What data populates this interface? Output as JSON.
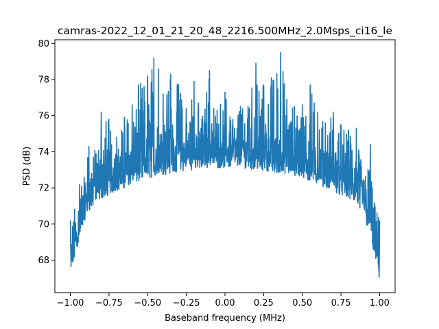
{
  "chart_data": {
    "type": "line",
    "title": "camras-2022_12_01_21_20_48_2216.500MHz_2.0Msps_ci16_le",
    "xlabel": "Baseband frequency (MHz)",
    "ylabel": "PSD (dB)",
    "xlim": [
      -1.1,
      1.1
    ],
    "ylim": [
      66.2,
      80.2
    ],
    "xticks": [
      -1.0,
      -0.75,
      -0.5,
      -0.25,
      0.0,
      0.25,
      0.5,
      0.75,
      1.0
    ],
    "xtick_labels": [
      "−1.00",
      "−0.75",
      "−0.50",
      "−0.25",
      "0.00",
      "0.25",
      "0.50",
      "0.75",
      "1.00"
    ],
    "yticks": [
      68,
      70,
      72,
      74,
      76,
      78,
      80
    ],
    "ytick_labels": [
      "68",
      "70",
      "72",
      "74",
      "76",
      "78",
      "80"
    ],
    "grid": false,
    "color": "#1f77b4",
    "series": [
      {
        "x_range": [
          -1.0,
          1.0
        ],
        "floor_shape": {
          "x": [
            -1.0,
            -0.98,
            -0.95,
            -0.92,
            -0.9,
            -0.85,
            -0.8,
            -0.7,
            -0.6,
            -0.5,
            -0.4,
            -0.3,
            -0.2,
            -0.1,
            0.0,
            0.1,
            0.2,
            0.3,
            0.4,
            0.5,
            0.6,
            0.7,
            0.8,
            0.85,
            0.9,
            0.92,
            0.95,
            0.98,
            1.0
          ],
          "y": [
            67.0,
            68.0,
            69.0,
            70.0,
            70.6,
            71.2,
            71.6,
            72.0,
            72.4,
            72.7,
            72.9,
            73.1,
            73.2,
            73.3,
            73.3,
            73.3,
            73.2,
            73.1,
            72.9,
            72.7,
            72.4,
            72.0,
            71.6,
            71.2,
            70.6,
            70.0,
            69.0,
            68.0,
            67.0
          ]
        },
        "peaks": [
          {
            "x": -1.0,
            "y": 70.2
          },
          {
            "x": -0.94,
            "y": 72.2
          },
          {
            "x": -0.91,
            "y": 72.6
          },
          {
            "x": -0.88,
            "y": 74.3
          },
          {
            "x": -0.85,
            "y": 73.7
          },
          {
            "x": -0.8,
            "y": 76.2
          },
          {
            "x": -0.75,
            "y": 75.8
          },
          {
            "x": -0.7,
            "y": 74.8
          },
          {
            "x": -0.65,
            "y": 75.9
          },
          {
            "x": -0.6,
            "y": 76.6
          },
          {
            "x": -0.56,
            "y": 77.7
          },
          {
            "x": -0.5,
            "y": 78.2
          },
          {
            "x": -0.46,
            "y": 79.2
          },
          {
            "x": -0.43,
            "y": 78.6
          },
          {
            "x": -0.4,
            "y": 77.2
          },
          {
            "x": -0.35,
            "y": 78.3
          },
          {
            "x": -0.3,
            "y": 77.7
          },
          {
            "x": -0.25,
            "y": 76.4
          },
          {
            "x": -0.2,
            "y": 77.9
          },
          {
            "x": -0.15,
            "y": 75.8
          },
          {
            "x": -0.1,
            "y": 78.5
          },
          {
            "x": -0.05,
            "y": 76.3
          },
          {
            "x": 0.0,
            "y": 77.3
          },
          {
            "x": 0.05,
            "y": 75.8
          },
          {
            "x": 0.1,
            "y": 76.5
          },
          {
            "x": 0.15,
            "y": 76.5
          },
          {
            "x": 0.2,
            "y": 78.9
          },
          {
            "x": 0.25,
            "y": 77.7
          },
          {
            "x": 0.3,
            "y": 78.1
          },
          {
            "x": 0.36,
            "y": 79.5
          },
          {
            "x": 0.4,
            "y": 76.9
          },
          {
            "x": 0.45,
            "y": 76.5
          },
          {
            "x": 0.5,
            "y": 76.6
          },
          {
            "x": 0.55,
            "y": 77.7
          },
          {
            "x": 0.6,
            "y": 76.2
          },
          {
            "x": 0.65,
            "y": 75.6
          },
          {
            "x": 0.7,
            "y": 76.2
          },
          {
            "x": 0.75,
            "y": 75.5
          },
          {
            "x": 0.8,
            "y": 75.2
          },
          {
            "x": 0.85,
            "y": 75.3
          },
          {
            "x": 0.9,
            "y": 72.4
          },
          {
            "x": 0.94,
            "y": 74.4
          },
          {
            "x": 0.97,
            "y": 71.0
          },
          {
            "x": 1.0,
            "y": 70.2
          }
        ]
      }
    ]
  }
}
